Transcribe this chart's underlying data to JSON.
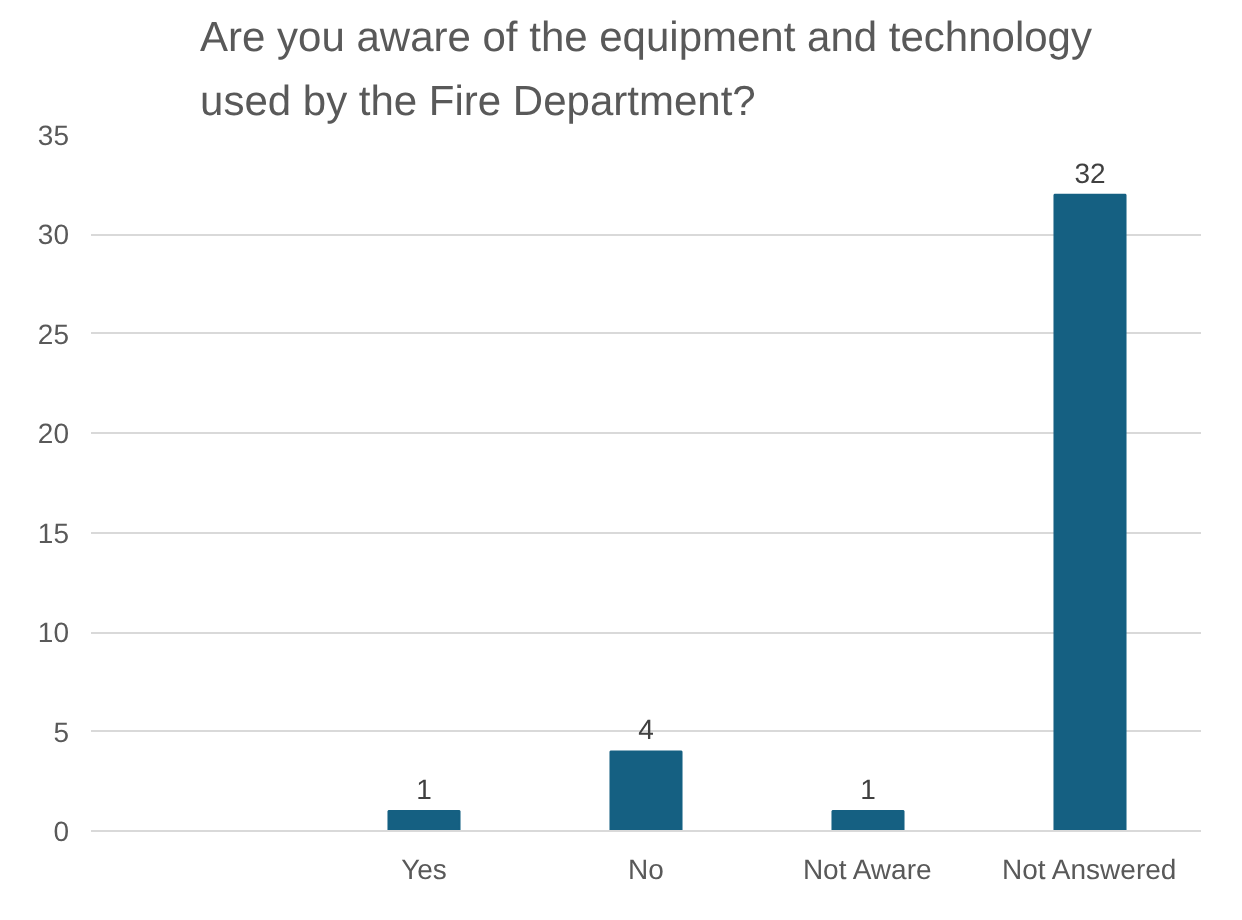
{
  "chart_data": {
    "type": "bar",
    "title": "Are you aware of the equipment and technology used by the Fire Department?",
    "categories": [
      null,
      "Yes",
      "No",
      "Not Aware",
      "Not Answered"
    ],
    "values": [
      null,
      1,
      4,
      1,
      32
    ],
    "color": "#156082",
    "ylim": [
      0,
      35
    ],
    "yticks": [
      0,
      5,
      10,
      15,
      20,
      25,
      30,
      35
    ],
    "grid": "y",
    "data_labels": true
  }
}
